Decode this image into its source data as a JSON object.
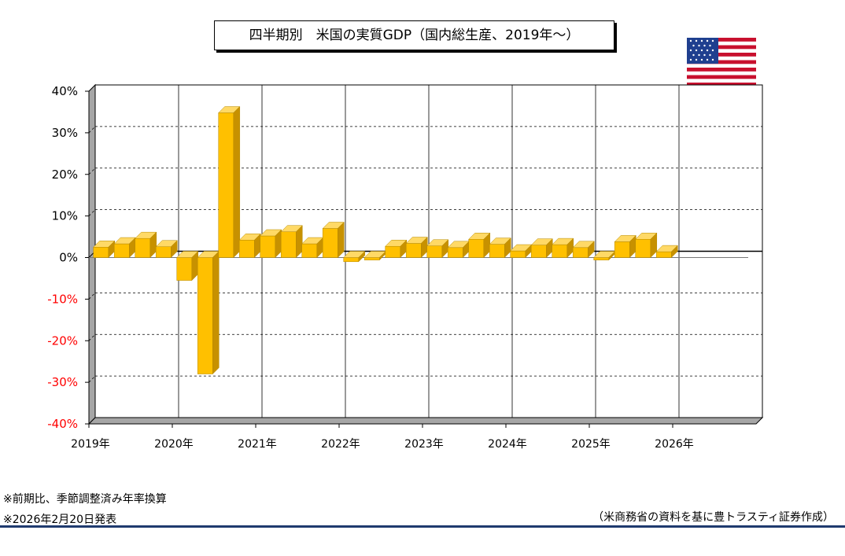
{
  "title": "四半期別　米国の実質GDP（国内総生産、2019年～）",
  "notes": [
    "※前期比、季節調整済み年率換算",
    "※2026年2月20日発表"
  ],
  "source": "（米商務省の資料を基に豊トラスティ証券作成）",
  "colors": {
    "bar": "#ffc000",
    "bar_top": "#ffd966",
    "bar_side": "#c79100",
    "negative_tick": "#ff0000",
    "rule": "#1f3a6e"
  },
  "icons": {
    "flag": "us-flag-icon"
  },
  "chart_data": {
    "type": "bar",
    "title": "四半期別　米国の実質GDP（国内総生産、2019年～）",
    "xlabel": "",
    "ylabel": "",
    "ylim": [
      -40,
      40
    ],
    "y_ticks": [
      "40%",
      "30%",
      "20%",
      "10%",
      "0%",
      "-10%",
      "-20%",
      "-30%",
      "-40%"
    ],
    "x_tick_labels": [
      "2019年",
      "2020年",
      "2021年",
      "2022年",
      "2023年",
      "2024年",
      "2025年",
      "2026年"
    ],
    "grid": true,
    "values": [
      2.5,
      3.3,
      4.6,
      2.6,
      -5.5,
      -28.0,
      34.8,
      4.2,
      5.2,
      6.2,
      3.3,
      7.0,
      -1.0,
      -0.6,
      2.7,
      3.4,
      2.8,
      2.4,
      4.4,
      3.2,
      1.6,
      3.0,
      3.1,
      2.4,
      -0.6,
      3.8,
      4.4,
      1.4
    ]
  }
}
